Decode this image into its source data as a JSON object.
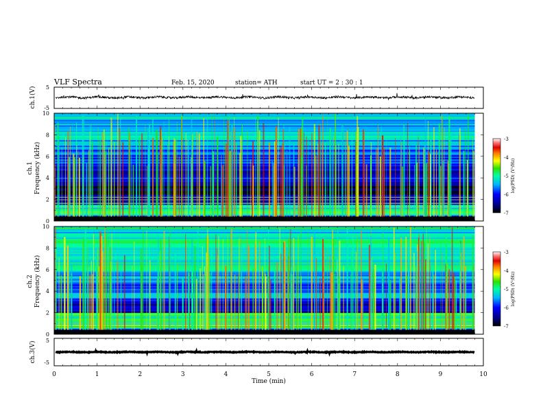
{
  "header": {
    "title": "VLF  Spectra",
    "date": "Feb. 15, 2020",
    "station": "station= ATH",
    "start_ut": "start  UT  =   2  : 30 : 1"
  },
  "chart_data": [
    {
      "type": "line",
      "panel": "ch1-waveform",
      "ylabel": "ch.1(V)",
      "ylim": [
        -5,
        5
      ],
      "yticks": [
        "5",
        "-5"
      ],
      "xlim": [
        0,
        10
      ],
      "signal": {
        "mean_v": 0.2,
        "noise_amplitude_v": 1.0,
        "end_min": 9.8
      }
    },
    {
      "type": "heatmap",
      "panel": "ch1-spectrogram",
      "ylabel_top": "ch.1",
      "ylabel": "Frequency  (kHz)",
      "ylim": [
        0,
        10
      ],
      "yticks": [
        "0",
        "2",
        "4",
        "6",
        "8",
        "10"
      ],
      "xlim": [
        0,
        10
      ],
      "data_end_min": 9.8,
      "colorbar": {
        "label": "log(PSD) (V²/Hz)",
        "range": [
          -7,
          -3
        ],
        "ticks": [
          "-3",
          "-4",
          "-5",
          "-6",
          "-7"
        ]
      },
      "bands": [
        {
          "from_khz": 0.0,
          "to_khz": 0.5,
          "level": -6.6
        },
        {
          "from_khz": 0.5,
          "to_khz": 1.5,
          "level": -5.2
        },
        {
          "from_khz": 1.5,
          "to_khz": 2.3,
          "level": -6.2
        },
        {
          "from_khz": 2.3,
          "to_khz": 3.5,
          "level": -6.7
        },
        {
          "from_khz": 3.5,
          "to_khz": 5.2,
          "level": -6.2
        },
        {
          "from_khz": 5.2,
          "to_khz": 7.0,
          "level": -5.8
        },
        {
          "from_khz": 7.0,
          "to_khz": 10.0,
          "level": -5.3
        }
      ]
    },
    {
      "type": "heatmap",
      "panel": "ch2-spectrogram",
      "ylabel_top": "ch.2",
      "ylabel": "Frequency  (kHz)",
      "ylim": [
        0,
        10
      ],
      "yticks": [
        "0",
        "2",
        "4",
        "6",
        "8",
        "10"
      ],
      "xlim": [
        0,
        10
      ],
      "data_end_min": 9.8,
      "colorbar": {
        "label": "log(PSD) (V²/Hz)",
        "range": [
          -7,
          -3
        ],
        "ticks": [
          "-3",
          "-4",
          "-5",
          "-6",
          "-7"
        ]
      },
      "bands": [
        {
          "from_khz": 0.0,
          "to_khz": 0.5,
          "level": -6.2
        },
        {
          "from_khz": 0.5,
          "to_khz": 2.0,
          "level": -5.1
        },
        {
          "from_khz": 2.0,
          "to_khz": 3.2,
          "level": -6.3
        },
        {
          "from_khz": 3.2,
          "to_khz": 5.5,
          "level": -5.6
        },
        {
          "from_khz": 5.5,
          "to_khz": 10.0,
          "level": -5.2
        }
      ]
    },
    {
      "type": "line",
      "panel": "ch3-waveform",
      "ylabel": "ch.3(V)",
      "ylim": [
        -5,
        5
      ],
      "yticks": [
        "5",
        "-5"
      ],
      "xlim": [
        0,
        10
      ],
      "signal": {
        "mean_v": 0.0,
        "noise_amplitude_v": 0.25,
        "end_min": 9.8
      },
      "xlabel": "Time  (min)",
      "xticks": [
        "0",
        "1",
        "2",
        "3",
        "4",
        "5",
        "6",
        "7",
        "8",
        "9",
        "10"
      ]
    }
  ]
}
